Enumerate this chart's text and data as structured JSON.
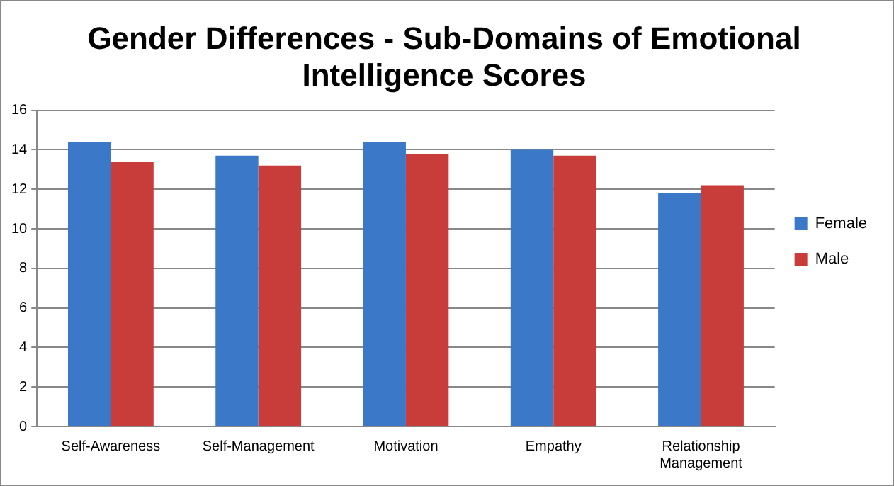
{
  "chart_data": {
    "type": "bar",
    "title": "Gender Differences - Sub-Domains of Emotional Intelligence Scores",
    "categories": [
      "Self-Awareness",
      "Self-Management",
      "Motivation",
      "Empathy",
      "Relationship Management"
    ],
    "series": [
      {
        "name": "Female",
        "color": "#3b78c8",
        "values": [
          14.4,
          13.7,
          14.4,
          14.0,
          11.8
        ]
      },
      {
        "name": "Male",
        "color": "#c83c3a",
        "values": [
          13.4,
          13.2,
          13.8,
          13.7,
          12.2
        ]
      }
    ],
    "ylim": [
      0,
      16
    ],
    "yticks": [
      0,
      2,
      4,
      6,
      8,
      10,
      12,
      14,
      16
    ],
    "grid": "y",
    "legend": "right"
  }
}
